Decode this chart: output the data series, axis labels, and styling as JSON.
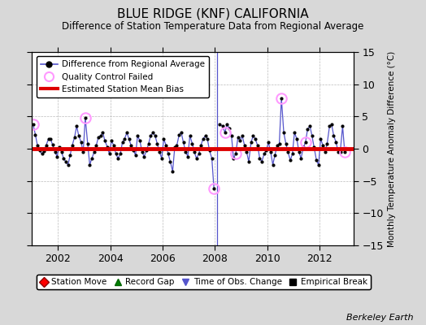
{
  "title": "BLUE RIDGE (KNF) CALIFORNIA",
  "subtitle": "Difference of Station Temperature Data from Regional Average",
  "ylabel_right": "Monthly Temperature Anomaly Difference (°C)",
  "ylim": [
    -15,
    15
  ],
  "xlim": [
    2001.0,
    2013.3
  ],
  "yticks": [
    -15,
    -10,
    -5,
    0,
    5,
    10,
    15
  ],
  "xticks": [
    2002,
    2004,
    2006,
    2008,
    2010,
    2012
  ],
  "bias_value": 0.0,
  "bg_color": "#d8d8d8",
  "plot_bg_color": "#ffffff",
  "line_color": "#5555cc",
  "bias_color": "#dd0000",
  "qc_marker_color": "#ff99ff",
  "obs_change_x": 2008.08,
  "watermark": "Berkeley Earth",
  "time_series": [
    [
      2001.04,
      3.8
    ],
    [
      2001.13,
      2.2
    ],
    [
      2001.21,
      0.5
    ],
    [
      2001.29,
      -0.3
    ],
    [
      2001.38,
      -0.8
    ],
    [
      2001.46,
      -0.4
    ],
    [
      2001.54,
      0.5
    ],
    [
      2001.63,
      1.5
    ],
    [
      2001.71,
      1.5
    ],
    [
      2001.79,
      0.6
    ],
    [
      2001.88,
      -0.5
    ],
    [
      2001.96,
      -1.2
    ],
    [
      2002.04,
      0.2
    ],
    [
      2002.13,
      -0.5
    ],
    [
      2002.21,
      -1.5
    ],
    [
      2002.29,
      -2.0
    ],
    [
      2002.38,
      -2.5
    ],
    [
      2002.46,
      -1.0
    ],
    [
      2002.54,
      0.5
    ],
    [
      2002.63,
      1.8
    ],
    [
      2002.71,
      3.5
    ],
    [
      2002.79,
      2.0
    ],
    [
      2002.88,
      1.0
    ],
    [
      2002.96,
      -0.5
    ],
    [
      2003.04,
      4.8
    ],
    [
      2003.13,
      0.8
    ],
    [
      2003.21,
      -2.5
    ],
    [
      2003.29,
      -1.5
    ],
    [
      2003.38,
      -0.5
    ],
    [
      2003.46,
      0.5
    ],
    [
      2003.54,
      1.8
    ],
    [
      2003.63,
      2.0
    ],
    [
      2003.71,
      2.5
    ],
    [
      2003.79,
      1.2
    ],
    [
      2003.88,
      0.3
    ],
    [
      2003.96,
      -0.8
    ],
    [
      2004.04,
      1.2
    ],
    [
      2004.13,
      0.5
    ],
    [
      2004.21,
      -0.8
    ],
    [
      2004.29,
      -1.5
    ],
    [
      2004.38,
      -0.8
    ],
    [
      2004.46,
      1.0
    ],
    [
      2004.54,
      1.5
    ],
    [
      2004.63,
      2.5
    ],
    [
      2004.71,
      1.5
    ],
    [
      2004.79,
      0.5
    ],
    [
      2004.88,
      -0.2
    ],
    [
      2004.96,
      -1.0
    ],
    [
      2005.04,
      2.0
    ],
    [
      2005.13,
      1.2
    ],
    [
      2005.21,
      -0.5
    ],
    [
      2005.29,
      -1.2
    ],
    [
      2005.38,
      -0.3
    ],
    [
      2005.46,
      0.8
    ],
    [
      2005.54,
      2.0
    ],
    [
      2005.63,
      2.5
    ],
    [
      2005.71,
      2.0
    ],
    [
      2005.79,
      0.8
    ],
    [
      2005.88,
      -0.5
    ],
    [
      2005.96,
      -1.5
    ],
    [
      2006.04,
      1.5
    ],
    [
      2006.13,
      0.5
    ],
    [
      2006.21,
      -0.8
    ],
    [
      2006.29,
      -2.0
    ],
    [
      2006.38,
      -3.5
    ],
    [
      2006.46,
      0.2
    ],
    [
      2006.54,
      0.5
    ],
    [
      2006.63,
      2.2
    ],
    [
      2006.71,
      2.5
    ],
    [
      2006.79,
      1.0
    ],
    [
      2006.88,
      -0.5
    ],
    [
      2006.96,
      -1.2
    ],
    [
      2007.04,
      2.0
    ],
    [
      2007.13,
      0.8
    ],
    [
      2007.21,
      -0.5
    ],
    [
      2007.29,
      -1.5
    ],
    [
      2007.38,
      -0.8
    ],
    [
      2007.46,
      0.5
    ],
    [
      2007.54,
      1.5
    ],
    [
      2007.63,
      2.0
    ],
    [
      2007.71,
      1.5
    ],
    [
      2007.79,
      -0.3
    ],
    [
      2007.88,
      -1.5
    ],
    [
      2007.96,
      -6.2
    ],
    [
      2008.17,
      3.8
    ],
    [
      2008.29,
      3.5
    ],
    [
      2008.38,
      2.5
    ],
    [
      2008.46,
      3.8
    ],
    [
      2008.54,
      3.2
    ],
    [
      2008.63,
      2.0
    ],
    [
      2008.71,
      -1.5
    ],
    [
      2008.79,
      -0.8
    ],
    [
      2008.88,
      1.8
    ],
    [
      2008.96,
      1.2
    ],
    [
      2009.04,
      2.0
    ],
    [
      2009.13,
      0.5
    ],
    [
      2009.21,
      -0.5
    ],
    [
      2009.29,
      -2.0
    ],
    [
      2009.38,
      1.0
    ],
    [
      2009.46,
      2.0
    ],
    [
      2009.54,
      1.5
    ],
    [
      2009.63,
      0.5
    ],
    [
      2009.71,
      -1.5
    ],
    [
      2009.79,
      -2.0
    ],
    [
      2009.88,
      -0.8
    ],
    [
      2009.96,
      -0.3
    ],
    [
      2010.04,
      1.0
    ],
    [
      2010.13,
      -0.5
    ],
    [
      2010.21,
      -2.5
    ],
    [
      2010.29,
      -1.0
    ],
    [
      2010.38,
      0.5
    ],
    [
      2010.46,
      0.8
    ],
    [
      2010.54,
      7.8
    ],
    [
      2010.63,
      2.5
    ],
    [
      2010.71,
      0.8
    ],
    [
      2010.79,
      -0.5
    ],
    [
      2010.88,
      -1.8
    ],
    [
      2010.96,
      -0.8
    ],
    [
      2011.04,
      2.5
    ],
    [
      2011.13,
      1.5
    ],
    [
      2011.21,
      -0.5
    ],
    [
      2011.29,
      -1.5
    ],
    [
      2011.38,
      0.2
    ],
    [
      2011.46,
      1.0
    ],
    [
      2011.54,
      3.0
    ],
    [
      2011.63,
      3.5
    ],
    [
      2011.71,
      2.0
    ],
    [
      2011.79,
      0.2
    ],
    [
      2011.88,
      -1.8
    ],
    [
      2011.96,
      -2.5
    ],
    [
      2012.04,
      1.5
    ],
    [
      2012.13,
      0.5
    ],
    [
      2012.21,
      -0.5
    ],
    [
      2012.29,
      0.8
    ],
    [
      2012.38,
      3.5
    ],
    [
      2012.46,
      3.8
    ],
    [
      2012.54,
      2.0
    ],
    [
      2012.63,
      1.0
    ],
    [
      2012.71,
      -0.5
    ],
    [
      2012.79,
      -0.5
    ],
    [
      2012.88,
      3.5
    ],
    [
      2012.96,
      -0.5
    ]
  ],
  "qc_points": [
    [
      2001.04,
      3.8
    ],
    [
      2003.04,
      4.8
    ],
    [
      2007.96,
      -6.2
    ],
    [
      2008.38,
      2.5
    ],
    [
      2008.79,
      -0.8
    ],
    [
      2010.54,
      7.8
    ],
    [
      2011.46,
      1.0
    ],
    [
      2012.96,
      -0.5
    ]
  ]
}
